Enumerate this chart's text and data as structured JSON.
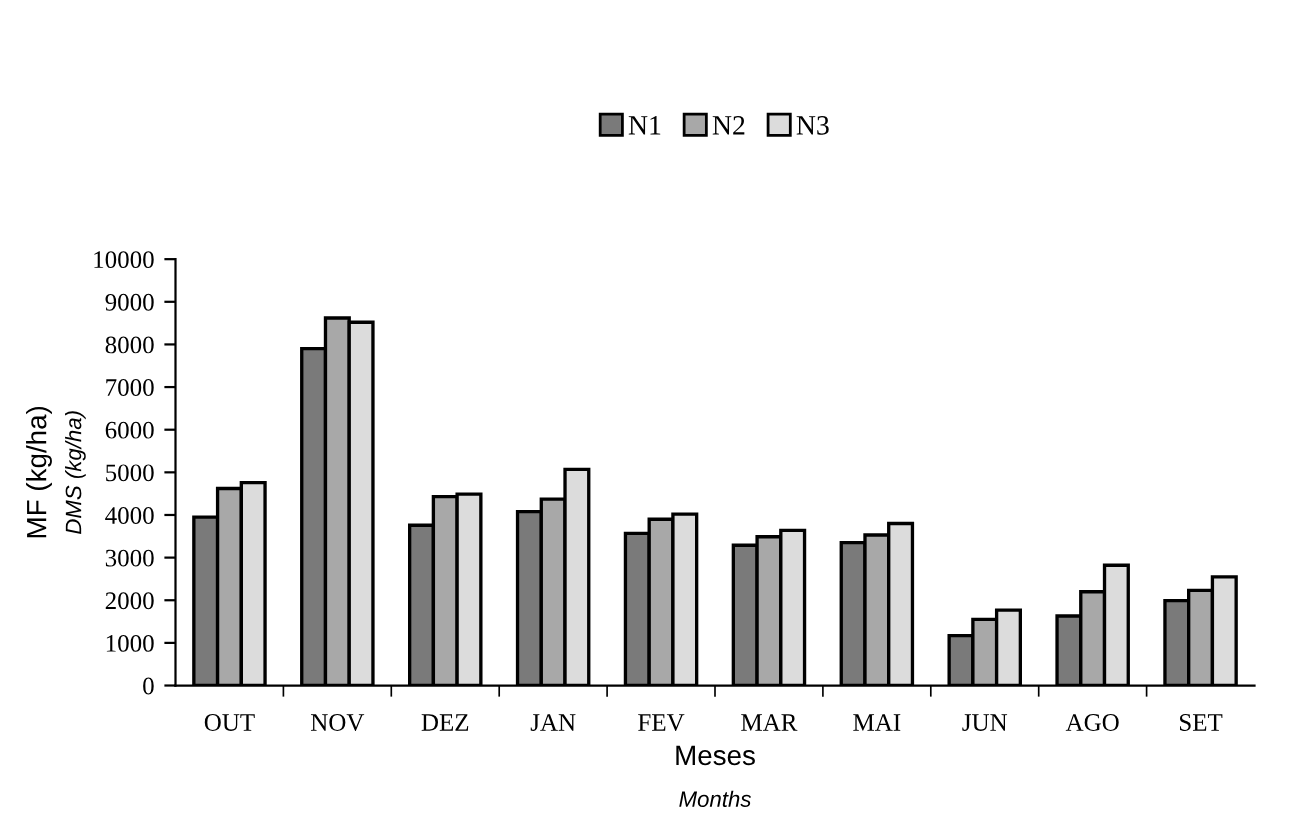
{
  "chart_data": {
    "type": "bar",
    "categories": [
      "OUT",
      "NOV",
      "DEZ",
      "JAN",
      "FEV",
      "MAR",
      "MAI",
      "JUN",
      "AGO",
      "SET"
    ],
    "series": [
      {
        "name": "N1",
        "color": "#7a7a7a",
        "values": [
          3950,
          7900,
          3760,
          4080,
          3570,
          3290,
          3350,
          1170,
          1630,
          1990
        ]
      },
      {
        "name": "N2",
        "color": "#a8a8a8",
        "values": [
          4620,
          8620,
          4430,
          4370,
          3900,
          3490,
          3530,
          1550,
          2200,
          2230
        ]
      },
      {
        "name": "N3",
        "color": "#dcdcdc",
        "values": [
          4760,
          8520,
          4490,
          5070,
          4020,
          3640,
          3800,
          1770,
          2820,
          2550
        ]
      }
    ],
    "xlabel": "Meses\nMonths",
    "ylabel": "MF (kg/ha)\nDMS (kg/ha)",
    "ylim": [
      0,
      10000
    ],
    "yticks": [
      0,
      1000,
      2000,
      3000,
      4000,
      5000,
      6000,
      7000,
      8000,
      9000,
      10000
    ],
    "grid": false,
    "legend": "top"
  }
}
